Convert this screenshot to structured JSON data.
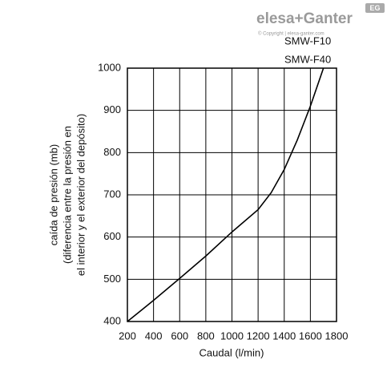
{
  "logo": {
    "brand": "elesa+Ganter",
    "copyright": "© Copyright | elesa-ganter.com",
    "badge": "EG"
  },
  "chart_data": {
    "type": "line",
    "curve_labels": [
      "SMW-F10",
      "SMW-F40"
    ],
    "xlabel": "Caudal (l/min)",
    "ylabel": [
      "caída de presión (mb)",
      "(diferencia entre la presión en",
      "el interior y el exterior del depósito)"
    ],
    "x": [
      200,
      400,
      600,
      800,
      1000,
      1200,
      1300,
      1400,
      1500,
      1600,
      1700
    ],
    "series": [
      {
        "color": "#000000",
        "values": [
          400,
          450,
          502,
          555,
          612,
          665,
          705,
          760,
          830,
          910,
          1000
        ]
      }
    ],
    "xlim": [
      200,
      1800
    ],
    "xticks": [
      200,
      400,
      600,
      800,
      1000,
      1200,
      1400,
      1600,
      1800
    ],
    "ylim": [
      400,
      1000
    ],
    "yticks": [
      400,
      500,
      600,
      700,
      800,
      900,
      1000
    ],
    "grid": true
  }
}
